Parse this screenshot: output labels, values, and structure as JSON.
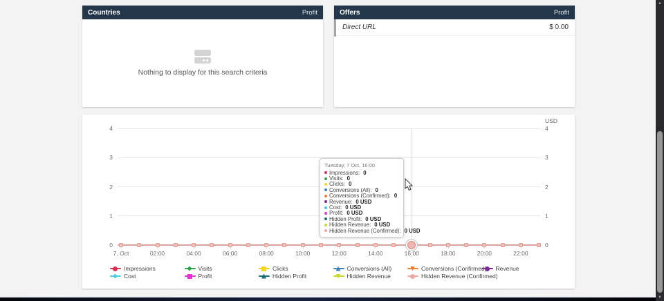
{
  "panels": {
    "countries": {
      "title": "Countries",
      "header_right": "Profit",
      "empty_text": "Nothing to display for this search criteria"
    },
    "offers": {
      "title": "Offers",
      "header_right": "Profit",
      "rows": [
        {
          "name": "Direct URL",
          "profit": "$ 0.00"
        }
      ]
    }
  },
  "chart": {
    "unit": "USD"
  },
  "chart_data": {
    "type": "line",
    "title": "",
    "y_unit": "USD",
    "ylim": [
      0,
      4
    ],
    "yticks": [
      0,
      1,
      2,
      3,
      4
    ],
    "grid": true,
    "legend_position": "bottom",
    "x": [
      "00:00",
      "01:00",
      "02:00",
      "03:00",
      "04:00",
      "05:00",
      "06:00",
      "07:00",
      "08:00",
      "09:00",
      "10:00",
      "11:00",
      "12:00",
      "13:00",
      "14:00",
      "15:00",
      "16:00",
      "17:00",
      "18:00",
      "19:00",
      "20:00",
      "21:00",
      "22:00",
      "23:00"
    ],
    "x_tick_labels": [
      "7. Oct",
      "02:00",
      "04:00",
      "06:00",
      "08:00",
      "10:00",
      "12:00",
      "14:00",
      "16:00",
      "18:00",
      "20:00",
      "22:00"
    ],
    "hover_point": {
      "index": 16,
      "x": "16:00"
    },
    "series": [
      {
        "name": "Impressions",
        "color": "#d5314f",
        "marker": "shape-circle",
        "values": [
          0,
          0,
          0,
          0,
          0,
          0,
          0,
          0,
          0,
          0,
          0,
          0,
          0,
          0,
          0,
          0,
          0,
          0,
          0,
          0,
          0,
          0,
          0,
          0
        ]
      },
      {
        "name": "Visits",
        "color": "#2f9e4f",
        "marker": "shape-diamond",
        "values": [
          0,
          0,
          0,
          0,
          0,
          0,
          0,
          0,
          0,
          0,
          0,
          0,
          0,
          0,
          0,
          0,
          0,
          0,
          0,
          0,
          0,
          0,
          0,
          0
        ]
      },
      {
        "name": "Clicks",
        "color": "#f3d524",
        "marker": "shape-square",
        "values": [
          0,
          0,
          0,
          0,
          0,
          0,
          0,
          0,
          0,
          0,
          0,
          0,
          0,
          0,
          0,
          0,
          0,
          0,
          0,
          0,
          0,
          0,
          0,
          0
        ]
      },
      {
        "name": "Conversions (All)",
        "color": "#3d83bd",
        "marker": "shape-triangle",
        "values": [
          0,
          0,
          0,
          0,
          0,
          0,
          0,
          0,
          0,
          0,
          0,
          0,
          0,
          0,
          0,
          0,
          0,
          0,
          0,
          0,
          0,
          0,
          0,
          0
        ]
      },
      {
        "name": "Conversions (Confirmed)",
        "color": "#ec8038",
        "marker": "shape-triangle-down",
        "values": [
          0,
          0,
          0,
          0,
          0,
          0,
          0,
          0,
          0,
          0,
          0,
          0,
          0,
          0,
          0,
          0,
          0,
          0,
          0,
          0,
          0,
          0,
          0,
          0
        ]
      },
      {
        "name": "Revenue",
        "color": "#7c2d94",
        "marker": "shape-circle",
        "values": [
          0,
          0,
          0,
          0,
          0,
          0,
          0,
          0,
          0,
          0,
          0,
          0,
          0,
          0,
          0,
          0,
          0,
          0,
          0,
          0,
          0,
          0,
          0,
          0
        ]
      },
      {
        "name": "Cost",
        "color": "#47cfe0",
        "marker": "shape-diamond",
        "values": [
          0,
          0,
          0,
          0,
          0,
          0,
          0,
          0,
          0,
          0,
          0,
          0,
          0,
          0,
          0,
          0,
          0,
          0,
          0,
          0,
          0,
          0,
          0,
          0
        ]
      },
      {
        "name": "Profit",
        "color": "#e234cf",
        "marker": "shape-square",
        "values": [
          0,
          0,
          0,
          0,
          0,
          0,
          0,
          0,
          0,
          0,
          0,
          0,
          0,
          0,
          0,
          0,
          0,
          0,
          0,
          0,
          0,
          0,
          0,
          0
        ]
      },
      {
        "name": "Hidden Profit",
        "color": "#176d77",
        "marker": "shape-triangle",
        "values": [
          0,
          0,
          0,
          0,
          0,
          0,
          0,
          0,
          0,
          0,
          0,
          0,
          0,
          0,
          0,
          0,
          0,
          0,
          0,
          0,
          0,
          0,
          0,
          0
        ]
      },
      {
        "name": "Hidden Revenue",
        "color": "#c8d830",
        "marker": "shape-triangle-down",
        "values": [
          0,
          0,
          0,
          0,
          0,
          0,
          0,
          0,
          0,
          0,
          0,
          0,
          0,
          0,
          0,
          0,
          0,
          0,
          0,
          0,
          0,
          0,
          0,
          0
        ]
      },
      {
        "name": "Hidden Revenue (Confirmed)",
        "color": "#efa8a4",
        "marker": "shape-circle",
        "values": [
          0,
          0,
          0,
          0,
          0,
          0,
          0,
          0,
          0,
          0,
          0,
          0,
          0,
          0,
          0,
          0,
          0,
          0,
          0,
          0,
          0,
          0,
          0,
          0
        ]
      }
    ]
  },
  "tooltip": {
    "title": "Tuesday, 7 Oct, 16:00",
    "items": [
      {
        "label": "Impressions:",
        "value": "0",
        "color": "#d5314f"
      },
      {
        "label": "Visits:",
        "value": "0",
        "color": "#2f9e4f"
      },
      {
        "label": "Clicks:",
        "value": "0",
        "color": "#f3d524"
      },
      {
        "label": "Conversions (All):",
        "value": "0",
        "color": "#3d83bd"
      },
      {
        "label": "Conversions (Confirmed):",
        "value": "0",
        "color": "#ec8038"
      },
      {
        "label": "Revenue:",
        "value": "0 USD",
        "color": "#7c2d94"
      },
      {
        "label": "Cost:",
        "value": "0 USD",
        "color": "#47cfe0"
      },
      {
        "label": "Profit:",
        "value": "0 USD",
        "color": "#e234cf"
      },
      {
        "label": "Hidden Profit:",
        "value": "0 USD",
        "color": "#176d77"
      },
      {
        "label": "Hidden Revenue:",
        "value": "0 USD",
        "color": "#c8d830"
      },
      {
        "label": "Hidden Revenue (Confirmed):",
        "value": "0 USD",
        "color": "#efa8a4"
      }
    ]
  },
  "legend": {
    "items": [
      {
        "label": "Impressions",
        "color": "#d5314f",
        "shape": "shape-circle"
      },
      {
        "label": "Visits",
        "color": "#2f9e4f",
        "shape": "shape-diamond"
      },
      {
        "label": "Clicks",
        "color": "#f3d524",
        "shape": "shape-square"
      },
      {
        "label": "Conversions (All)",
        "color": "#3d83bd",
        "shape": "shape-triangle"
      },
      {
        "label": "Conversions (Confirmed)",
        "color": "#ec8038",
        "shape": "shape-triangle-down"
      },
      {
        "label": "Revenue",
        "color": "#7c2d94",
        "shape": "shape-circle"
      },
      {
        "label": "Cost",
        "color": "#47cfe0",
        "shape": "shape-diamond"
      },
      {
        "label": "Profit",
        "color": "#e234cf",
        "shape": "shape-square"
      },
      {
        "label": "Hidden Profit",
        "color": "#176d77",
        "shape": "shape-triangle"
      },
      {
        "label": "Hidden Revenue",
        "color": "#c8d830",
        "shape": "shape-triangle-down"
      },
      {
        "label": "Hidden Revenue (Confirmed)",
        "color": "#efa8a4",
        "shape": "shape-circle"
      }
    ]
  },
  "colors": {
    "panel_header_bg": "#24374a",
    "page_bg": "#f3f3f4",
    "axis_line": "#d8a39c"
  }
}
